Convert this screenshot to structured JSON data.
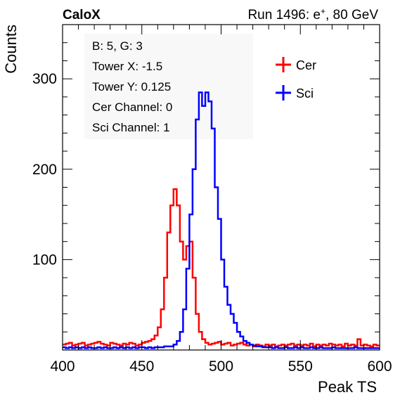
{
  "header": {
    "left": "CaloX",
    "right_prefix": "Run 1496: e",
    "right_sup": "+",
    "right_suffix": ", 80 GeV"
  },
  "info_box": {
    "lines": [
      "B: 5, G: 3",
      "Tower X: -1.5",
      "Tower Y: 0.125",
      "Cer Channel: 0",
      "Sci Channel: 1"
    ]
  },
  "chart_data": {
    "type": "line",
    "title": "",
    "xlabel": "Peak TS",
    "ylabel": "Counts",
    "xlim": [
      400,
      600
    ],
    "ylim": [
      0,
      360
    ],
    "xticks": [
      400,
      450,
      500,
      550,
      600
    ],
    "yticks": [
      100,
      200,
      300
    ],
    "grid": false,
    "legend_position": "top-right",
    "x": [
      400,
      402,
      404,
      406,
      408,
      410,
      412,
      414,
      416,
      418,
      420,
      422,
      424,
      426,
      428,
      430,
      432,
      434,
      436,
      438,
      440,
      442,
      444,
      446,
      448,
      450,
      452,
      454,
      456,
      458,
      460,
      462,
      464,
      466,
      468,
      470,
      472,
      474,
      476,
      478,
      480,
      482,
      484,
      486,
      488,
      490,
      492,
      494,
      496,
      498,
      500,
      502,
      504,
      506,
      508,
      510,
      512,
      514,
      516,
      518,
      520,
      522,
      524,
      526,
      528,
      530,
      532,
      534,
      536,
      538,
      540,
      542,
      544,
      546,
      548,
      550,
      552,
      554,
      556,
      558,
      560,
      562,
      564,
      566,
      568,
      570,
      572,
      574,
      576,
      578,
      580,
      582,
      584,
      586,
      588,
      590,
      592,
      594,
      596,
      598
    ],
    "series": [
      {
        "name": "Cer",
        "color": "#ff0000",
        "values": [
          6,
          7,
          8,
          5,
          6,
          7,
          8,
          5,
          6,
          7,
          8,
          9,
          7,
          6,
          5,
          8,
          7,
          6,
          5,
          7,
          6,
          8,
          7,
          5,
          6,
          8,
          9,
          10,
          12,
          16,
          25,
          45,
          80,
          130,
          160,
          178,
          160,
          120,
          100,
          115,
          120,
          80,
          40,
          20,
          12,
          8,
          6,
          7,
          8,
          9,
          6,
          7,
          8,
          5,
          6,
          7,
          8,
          6,
          5,
          6,
          4,
          6,
          5,
          4,
          6,
          5,
          6,
          4,
          5,
          6,
          5,
          6,
          7,
          5,
          6,
          5,
          6,
          5,
          7,
          4,
          6,
          5,
          6,
          5,
          7,
          6,
          5,
          6,
          4,
          7,
          5,
          6,
          5,
          12,
          5,
          6,
          5,
          4,
          6,
          5
        ]
      },
      {
        "name": "Sci",
        "color": "#0000ff",
        "values": [
          3,
          2,
          3,
          2,
          3,
          2,
          3,
          2,
          3,
          2,
          2,
          3,
          2,
          3,
          2,
          2,
          3,
          2,
          3,
          2,
          3,
          2,
          3,
          2,
          3,
          3,
          2,
          3,
          2,
          3,
          3,
          3,
          4,
          4,
          4,
          6,
          10,
          20,
          45,
          90,
          150,
          200,
          255,
          285,
          270,
          285,
          275,
          245,
          180,
          145,
          100,
          70,
          50,
          40,
          30,
          20,
          15,
          10,
          8,
          6,
          5,
          4,
          4,
          3,
          3,
          3,
          2,
          3,
          2,
          2,
          3,
          2,
          2,
          3,
          2,
          3,
          2,
          2,
          3,
          2,
          2,
          3,
          2,
          2,
          2,
          3,
          2,
          2,
          2,
          2,
          2,
          2,
          3,
          2,
          2,
          2,
          2,
          2,
          2,
          2
        ]
      }
    ]
  }
}
